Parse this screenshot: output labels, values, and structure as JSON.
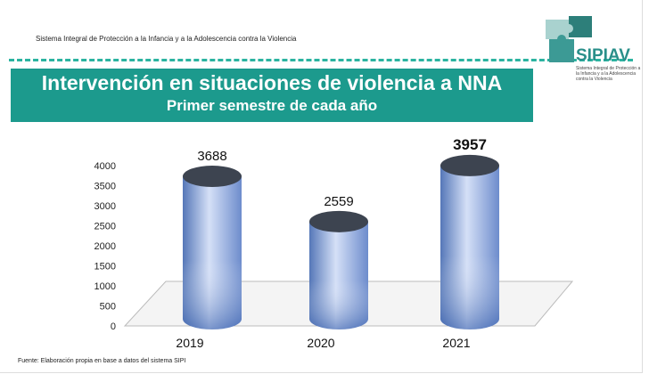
{
  "header": {
    "org": "Sistema Integral de Protección a la Infancia y a la Adolescencia contra la  Violencia"
  },
  "logo": {
    "name": "SIPIAV",
    "subtitle": "Sistema Integral de Protección a la Infancia y a la Adolescencia contra la Violencia"
  },
  "footer": "Fuente: Elaboración propia en base a datos del sistema SIPI",
  "colors": {
    "teal": "#1c9a8d",
    "dash": "#2bb3a0"
  },
  "chart_data": {
    "type": "bar",
    "title": "Intervención en situaciones de violencia a NNA",
    "subtitle": "Primer semestre de cada año",
    "categories": [
      "2019",
      "2020",
      "2021"
    ],
    "values": [
      3688,
      2559,
      3957
    ],
    "data_labels": [
      "3688",
      "2559",
      "3957"
    ],
    "yticks": [
      "0",
      "500",
      "1000",
      "1500",
      "2000",
      "2500",
      "3000",
      "3500",
      "4000"
    ],
    "ylim": [
      0,
      4000
    ],
    "xlabel": "",
    "ylabel": ""
  }
}
